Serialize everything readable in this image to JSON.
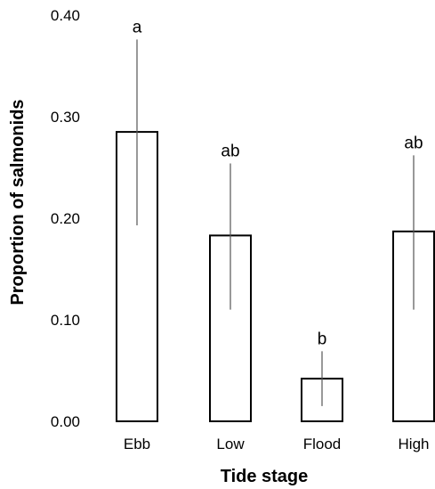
{
  "chart_data": {
    "type": "bar",
    "title": "",
    "xlabel": "Tide stage",
    "ylabel": "Proportion of salmonids",
    "categories": [
      "Ebb",
      "Low",
      "Flood",
      "High"
    ],
    "values": [
      0.285,
      0.183,
      0.042,
      0.187
    ],
    "error_upper": [
      0.376,
      0.254,
      0.069,
      0.262
    ],
    "error_lower": [
      0.193,
      0.11,
      0.015,
      0.11
    ],
    "significance_labels": [
      "a",
      "ab",
      "b",
      "ab"
    ],
    "ylim": [
      0,
      0.4
    ],
    "yticks": [
      "0.00",
      "0.10",
      "0.20",
      "0.30",
      "0.40"
    ],
    "grid": false,
    "bar_fill": "#ffffff",
    "bar_stroke": "#000000",
    "error_bar_color": "#555555"
  }
}
